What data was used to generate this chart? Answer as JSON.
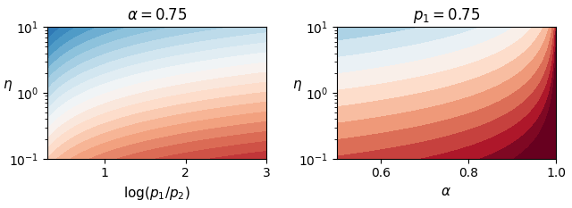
{
  "title1": "$\\alpha = 0.75$",
  "title2": "$p_1 = 0.75$",
  "xlabel1": "$\\log(p_1/p_2)$",
  "xlabel2": "$\\alpha$",
  "ylabel": "$\\eta$",
  "eta_min": 0.1,
  "eta_max": 10.0,
  "log_ratio_min": 0.3,
  "log_ratio_max": 3.0,
  "alpha_min": 0.5,
  "alpha_max": 1.0,
  "alpha_fixed": 0.75,
  "p1_fixed": 0.75,
  "cmap": "RdBu",
  "n_levels": 20,
  "vmin": -2.0,
  "vmax": 2.0,
  "figsize": [
    6.4,
    2.33
  ],
  "dpi": 100
}
